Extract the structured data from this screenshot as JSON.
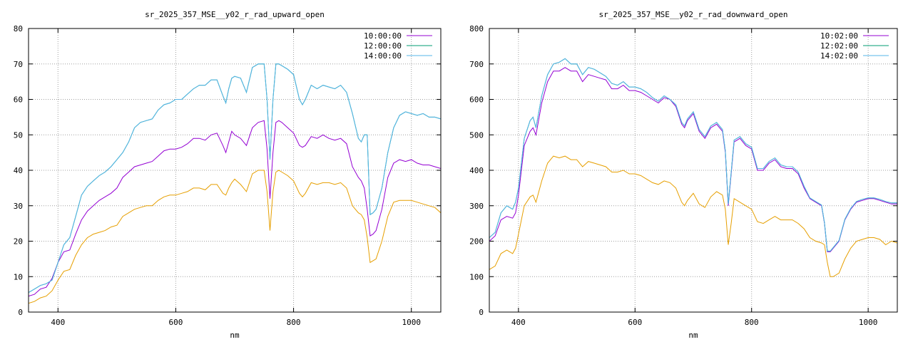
{
  "chart_data": [
    {
      "type": "line",
      "title": "sr_2025_357_MSE__y02_r_rad_upward_open",
      "xlabel": "nm",
      "ylabel": "",
      "xlim": [
        350,
        1050
      ],
      "ylim": [
        0,
        80
      ],
      "xticks": [
        400,
        600,
        800,
        1000
      ],
      "yticks": [
        0,
        10,
        20,
        30,
        40,
        50,
        60,
        70,
        80
      ],
      "grid": true,
      "legend_position": "top-right",
      "x": [
        350,
        360,
        370,
        380,
        390,
        400,
        410,
        420,
        430,
        440,
        450,
        460,
        470,
        480,
        490,
        500,
        510,
        520,
        530,
        540,
        550,
        560,
        570,
        580,
        590,
        600,
        610,
        620,
        630,
        640,
        650,
        660,
        670,
        680,
        685,
        690,
        695,
        700,
        710,
        720,
        730,
        740,
        750,
        755,
        760,
        765,
        770,
        775,
        780,
        790,
        800,
        810,
        815,
        820,
        830,
        840,
        850,
        860,
        870,
        880,
        890,
        900,
        910,
        915,
        920,
        925,
        930,
        935,
        940,
        950,
        960,
        970,
        980,
        990,
        1000,
        1010,
        1020,
        1030,
        1040,
        1050
      ],
      "series": [
        {
          "name": "10:00:00",
          "color": "#9400d3",
          "values": [
            4.5,
            5,
            6.5,
            7,
            9.5,
            14,
            17,
            17.5,
            22,
            26,
            28.5,
            30,
            31.5,
            32.5,
            33.5,
            35,
            38,
            39.5,
            41,
            41.5,
            42,
            42.5,
            44,
            45.5,
            46,
            46,
            46.5,
            47.5,
            49,
            49,
            48.5,
            50,
            50.5,
            47,
            45,
            48,
            51,
            50,
            49,
            47,
            52,
            53.5,
            54,
            46,
            32,
            45,
            53.5,
            54,
            53.5,
            52,
            50.5,
            47,
            46.5,
            47,
            49.5,
            49,
            50,
            49,
            48.5,
            49,
            47.5,
            41,
            38,
            37,
            35,
            29,
            21.5,
            22,
            23,
            29,
            38,
            42,
            43,
            42.5,
            43,
            42,
            41.5,
            41.5,
            41,
            40.5
          ]
        },
        {
          "name": "12:00:00",
          "color": "#009e73",
          "values": [
            5.5,
            6.5,
            7.5,
            8,
            9,
            14,
            19,
            21,
            27,
            33,
            35.5,
            37,
            38.5,
            39.5,
            41,
            43,
            45,
            48,
            52,
            53.5,
            54,
            54.5,
            57,
            58.5,
            59,
            60,
            60,
            61.5,
            63,
            64,
            64,
            65.5,
            65.5,
            61,
            59,
            63,
            66,
            66.5,
            66,
            62,
            69,
            70,
            70,
            60,
            43,
            60,
            70,
            70,
            69.5,
            68.5,
            67,
            60,
            58.5,
            60,
            64,
            63,
            64,
            63.5,
            63,
            64,
            62,
            56,
            49,
            48,
            50,
            50,
            27.5,
            28,
            29,
            35,
            45,
            52,
            55.5,
            56.5,
            56,
            55.5,
            56,
            55,
            55,
            54.5
          ]
        },
        {
          "name": "14:00:00",
          "color": "#56b4e9",
          "values": [
            5.5,
            6.5,
            7.5,
            8,
            9,
            14,
            19,
            21,
            27,
            33,
            35.5,
            37,
            38.5,
            39.5,
            41,
            43,
            45,
            48,
            52,
            53.5,
            54,
            54.5,
            57,
            58.5,
            59,
            60,
            60,
            61.5,
            63,
            64,
            64,
            65.5,
            65.5,
            61,
            59,
            63,
            66,
            66.5,
            66,
            62,
            69,
            70,
            70,
            60,
            43,
            60,
            70,
            70,
            69.5,
            68.5,
            67,
            60,
            58.5,
            60,
            64,
            63,
            64,
            63.5,
            63,
            64,
            62,
            56,
            49,
            48,
            50,
            50,
            27.5,
            28,
            29,
            35,
            45,
            52,
            55.5,
            56.5,
            56,
            55.5,
            56,
            55,
            55,
            54.5
          ]
        },
        {
          "name": "",
          "color": "#e69f00",
          "values": [
            2.5,
            3,
            4,
            4.5,
            6,
            9,
            11.5,
            12,
            16,
            19,
            21,
            22,
            22.5,
            23,
            24,
            24.5,
            27,
            28,
            29,
            29.5,
            30,
            30,
            31.5,
            32.5,
            33,
            33,
            33.5,
            34,
            35,
            35,
            34.5,
            36,
            36,
            33.5,
            33,
            35,
            36.5,
            37.5,
            36,
            34,
            39,
            40,
            40,
            34,
            23,
            34,
            39.5,
            40,
            39.5,
            38.5,
            37,
            33.5,
            32.5,
            33.5,
            36.5,
            36,
            36.5,
            36.5,
            36,
            36.5,
            35,
            30,
            28,
            27.5,
            26,
            21,
            14,
            14.5,
            15,
            20,
            27,
            31,
            31.5,
            31.5,
            31.5,
            31,
            30.5,
            30,
            29.5,
            28
          ]
        }
      ]
    },
    {
      "type": "line",
      "title": "sr_2025_357_MSE__y02_r_rad_downward_open",
      "xlabel": "nm",
      "ylabel": "",
      "xlim": [
        350,
        1050
      ],
      "ylim": [
        0,
        800
      ],
      "xticks": [
        400,
        600,
        800,
        1000
      ],
      "yticks": [
        0,
        100,
        200,
        300,
        400,
        500,
        600,
        700,
        800
      ],
      "grid": true,
      "legend_position": "top-right",
      "x": [
        350,
        360,
        370,
        380,
        390,
        395,
        400,
        410,
        420,
        425,
        430,
        440,
        450,
        460,
        470,
        480,
        490,
        500,
        510,
        520,
        530,
        540,
        550,
        560,
        570,
        580,
        590,
        600,
        610,
        620,
        630,
        640,
        650,
        660,
        670,
        680,
        685,
        690,
        700,
        710,
        720,
        730,
        740,
        750,
        755,
        760,
        765,
        770,
        780,
        790,
        800,
        810,
        820,
        830,
        840,
        850,
        860,
        870,
        880,
        890,
        900,
        910,
        920,
        925,
        930,
        935,
        940,
        950,
        960,
        970,
        980,
        990,
        1000,
        1010,
        1020,
        1030,
        1040,
        1050
      ],
      "series": [
        {
          "name": "10:02:00",
          "color": "#9400d3",
          "values": [
            200,
            215,
            260,
            270,
            265,
            280,
            330,
            470,
            510,
            520,
            500,
            590,
            650,
            680,
            680,
            690,
            680,
            680,
            650,
            670,
            665,
            660,
            655,
            630,
            630,
            640,
            625,
            625,
            620,
            610,
            600,
            590,
            605,
            600,
            580,
            530,
            520,
            540,
            560,
            510,
            490,
            520,
            530,
            510,
            450,
            300,
            390,
            480,
            490,
            470,
            460,
            400,
            400,
            420,
            430,
            410,
            405,
            405,
            390,
            350,
            320,
            310,
            300,
            250,
            170,
            170,
            180,
            200,
            260,
            290,
            310,
            315,
            320,
            320,
            315,
            310,
            305,
            305
          ]
        },
        {
          "name": "12:02:00",
          "color": "#009e73",
          "values": [
            210,
            225,
            280,
            300,
            290,
            310,
            350,
            490,
            540,
            550,
            520,
            610,
            670,
            700,
            705,
            715,
            700,
            700,
            670,
            690,
            685,
            675,
            665,
            645,
            640,
            650,
            635,
            635,
            630,
            620,
            605,
            595,
            610,
            600,
            585,
            535,
            525,
            545,
            565,
            515,
            495,
            525,
            535,
            515,
            455,
            305,
            395,
            485,
            495,
            475,
            465,
            405,
            405,
            425,
            435,
            415,
            410,
            410,
            395,
            355,
            322,
            312,
            302,
            252,
            172,
            172,
            182,
            202,
            262,
            292,
            312,
            318,
            322,
            322,
            318,
            312,
            308,
            308
          ]
        },
        {
          "name": "14:02:00",
          "color": "#56b4e9",
          "values": [
            210,
            225,
            280,
            300,
            290,
            310,
            350,
            490,
            540,
            550,
            520,
            610,
            670,
            700,
            705,
            715,
            700,
            700,
            670,
            690,
            685,
            675,
            665,
            645,
            640,
            650,
            635,
            635,
            630,
            620,
            605,
            595,
            610,
            600,
            585,
            535,
            525,
            545,
            565,
            515,
            495,
            525,
            535,
            515,
            455,
            305,
            395,
            485,
            495,
            475,
            465,
            405,
            405,
            425,
            435,
            415,
            410,
            410,
            395,
            355,
            322,
            312,
            302,
            252,
            172,
            172,
            182,
            202,
            262,
            292,
            312,
            318,
            322,
            322,
            318,
            312,
            308,
            308
          ]
        },
        {
          "name": "",
          "color": "#e69f00",
          "values": [
            120,
            130,
            165,
            175,
            165,
            180,
            220,
            300,
            325,
            330,
            310,
            370,
            420,
            440,
            435,
            440,
            430,
            430,
            410,
            425,
            420,
            415,
            410,
            395,
            395,
            400,
            390,
            390,
            385,
            375,
            365,
            360,
            370,
            365,
            350,
            310,
            300,
            315,
            335,
            305,
            295,
            325,
            340,
            330,
            290,
            190,
            250,
            320,
            310,
            300,
            290,
            255,
            250,
            260,
            270,
            260,
            260,
            260,
            250,
            235,
            210,
            200,
            195,
            190,
            140,
            100,
            100,
            110,
            150,
            180,
            200,
            205,
            210,
            210,
            205,
            190,
            200,
            195
          ]
        }
      ]
    }
  ]
}
